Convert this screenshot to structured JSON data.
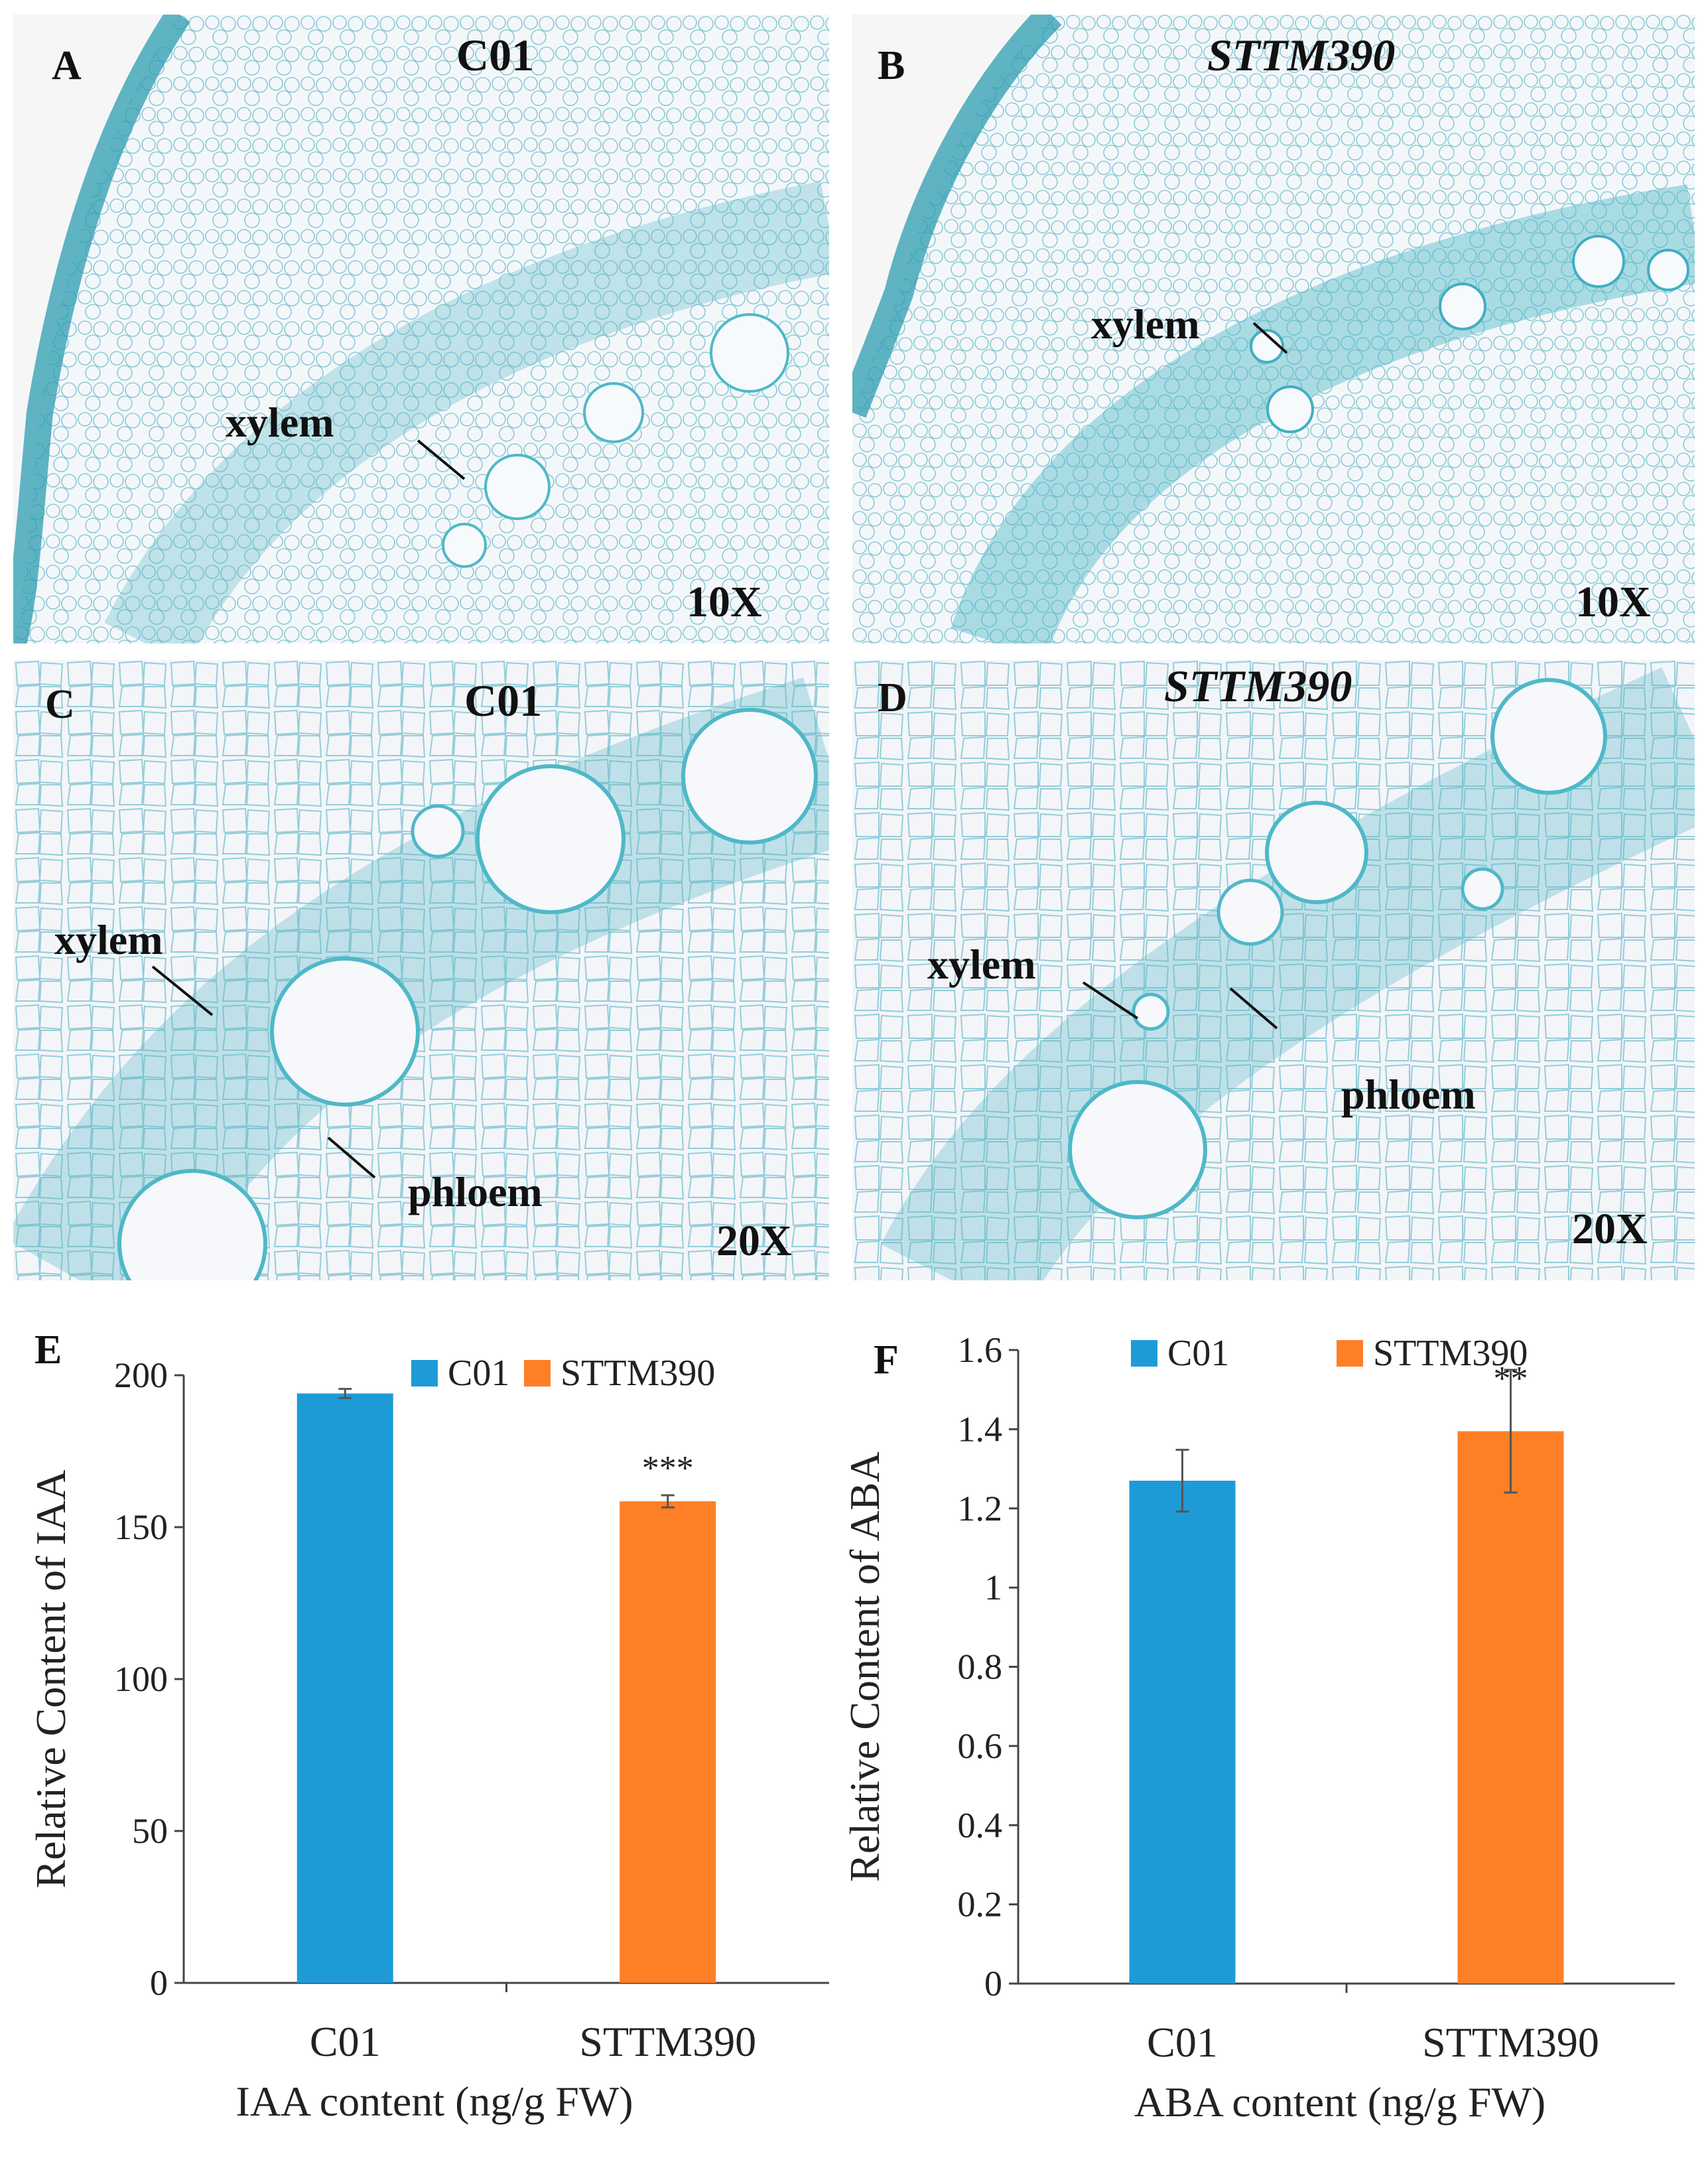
{
  "panels": {
    "A": {
      "letter": "A",
      "title": "C01",
      "magnification": "10X",
      "labels": [
        "xylem"
      ]
    },
    "B": {
      "letter": "B",
      "title": "STTM390",
      "magnification": "10X",
      "labels": [
        "xylem"
      ]
    },
    "C": {
      "letter": "C",
      "title": "C01",
      "magnification": "20X",
      "labels": [
        "xylem",
        "phloem"
      ]
    },
    "D": {
      "letter": "D",
      "title": "STTM390",
      "magnification": "20X",
      "labels": [
        "xylem",
        "phloem"
      ]
    }
  },
  "colors": {
    "c01": "#1E9BD7",
    "sttm390": "#FF7F27",
    "stain": "#4FB8C8",
    "tissue_bg": "#F3F6FA"
  },
  "chart_data": [
    {
      "panel": "E",
      "type": "bar",
      "categories": [
        "C01",
        "STTM390"
      ],
      "values": [
        194,
        158.5
      ],
      "errors": [
        1.5,
        2
      ],
      "significance": [
        "",
        "***"
      ],
      "legend": [
        "C01",
        "STTM390"
      ],
      "ylabel": "Relative Content of IAA",
      "xlabel": "IAA content (ng/g FW)",
      "ylim": [
        0,
        200
      ],
      "yticks": [
        "0",
        "50",
        "100",
        "150",
        "200"
      ]
    },
    {
      "panel": "F",
      "type": "bar",
      "categories": [
        "C01",
        "STTM390"
      ],
      "values": [
        1.27,
        1.395
      ],
      "errors": [
        0.078,
        0.155
      ],
      "significance": [
        "",
        "**"
      ],
      "legend": [
        "C01",
        "STTM390"
      ],
      "ylabel": "Relative Content of ABA",
      "xlabel": "ABA content (ng/g FW)",
      "ylim": [
        0,
        1.6
      ],
      "yticks": [
        "0",
        "0.2",
        "0.4",
        "0.6",
        "0.8",
        "1",
        "1.2",
        "1.4",
        "1.6"
      ]
    }
  ]
}
